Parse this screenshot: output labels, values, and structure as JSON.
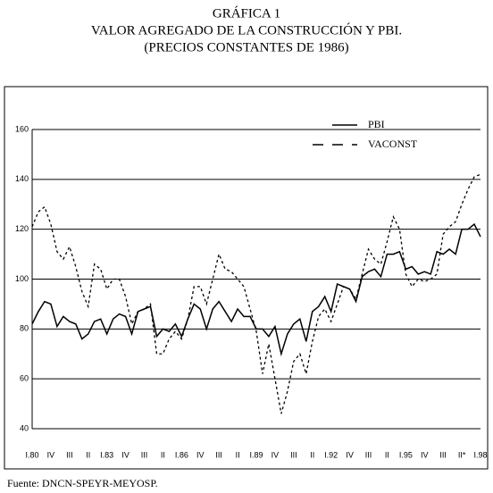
{
  "chart_data": {
    "type": "line",
    "title": [
      "GRÁFICA 1",
      "VALOR AGREGADO DE LA CONSTRUCCIÓN Y PBI.",
      "(PRECIOS CONSTANTES DE 1986)"
    ],
    "source": "Fuente: DNCN-SPEYR-MEYOSP.",
    "categories": [
      "I.80",
      null,
      null,
      "IV",
      null,
      null,
      "III",
      null,
      null,
      "II",
      null,
      null,
      "I.83",
      null,
      null,
      "IV",
      null,
      null,
      "III",
      null,
      null,
      "II",
      null,
      null,
      "I.86",
      null,
      null,
      "IV",
      null,
      null,
      "III",
      null,
      null,
      "II",
      null,
      null,
      "I.89",
      null,
      null,
      "IV",
      null,
      null,
      "III",
      null,
      null,
      "II",
      null,
      null,
      "I.92",
      null,
      null,
      "IV",
      null,
      null,
      "III",
      null,
      null,
      "II",
      null,
      null,
      "I.95",
      null,
      null,
      "IV",
      null,
      null,
      "III",
      null,
      null,
      "II*",
      null,
      null,
      "I.98"
    ],
    "series": [
      {
        "name": "PBI",
        "color": "#000000",
        "style": "solid",
        "values": [
          82,
          87,
          91,
          90,
          81,
          85,
          83,
          82,
          76,
          78,
          83,
          84,
          78,
          84,
          86,
          85,
          78,
          87,
          88,
          89,
          77,
          80,
          79,
          82,
          77,
          84,
          90,
          88,
          80,
          88,
          91,
          87,
          83,
          88,
          85,
          85,
          80,
          80,
          77,
          81,
          70,
          78,
          82,
          84,
          75,
          87,
          89,
          93,
          87,
          98,
          97,
          96,
          91,
          101,
          103,
          104,
          101,
          110,
          110,
          111,
          104,
          105,
          102,
          103,
          102,
          111,
          110,
          112,
          110,
          120,
          120,
          122,
          117
        ]
      },
      {
        "name": "VACONST",
        "color": "#000000",
        "style": "dashed",
        "values": [
          121,
          127,
          129,
          122,
          111,
          108,
          113,
          105,
          95,
          89,
          106,
          104,
          96,
          100,
          100,
          93,
          82,
          87,
          88,
          90,
          70,
          70,
          76,
          79,
          76,
          84,
          97,
          97,
          90,
          100,
          110,
          104,
          103,
          100,
          97,
          88,
          79,
          62,
          74,
          60,
          46,
          55,
          67,
          70,
          62,
          75,
          85,
          88,
          83,
          90,
          97,
          96,
          92,
          102,
          112,
          108,
          106,
          115,
          125,
          120,
          102,
          97,
          100,
          99,
          100,
          102,
          118,
          121,
          123,
          130,
          136,
          141,
          142
        ]
      }
    ],
    "ylim": [
      40,
      160
    ],
    "yticks": [
      40,
      60,
      80,
      100,
      120,
      140,
      160
    ],
    "grid": true,
    "legend": "upper right"
  }
}
